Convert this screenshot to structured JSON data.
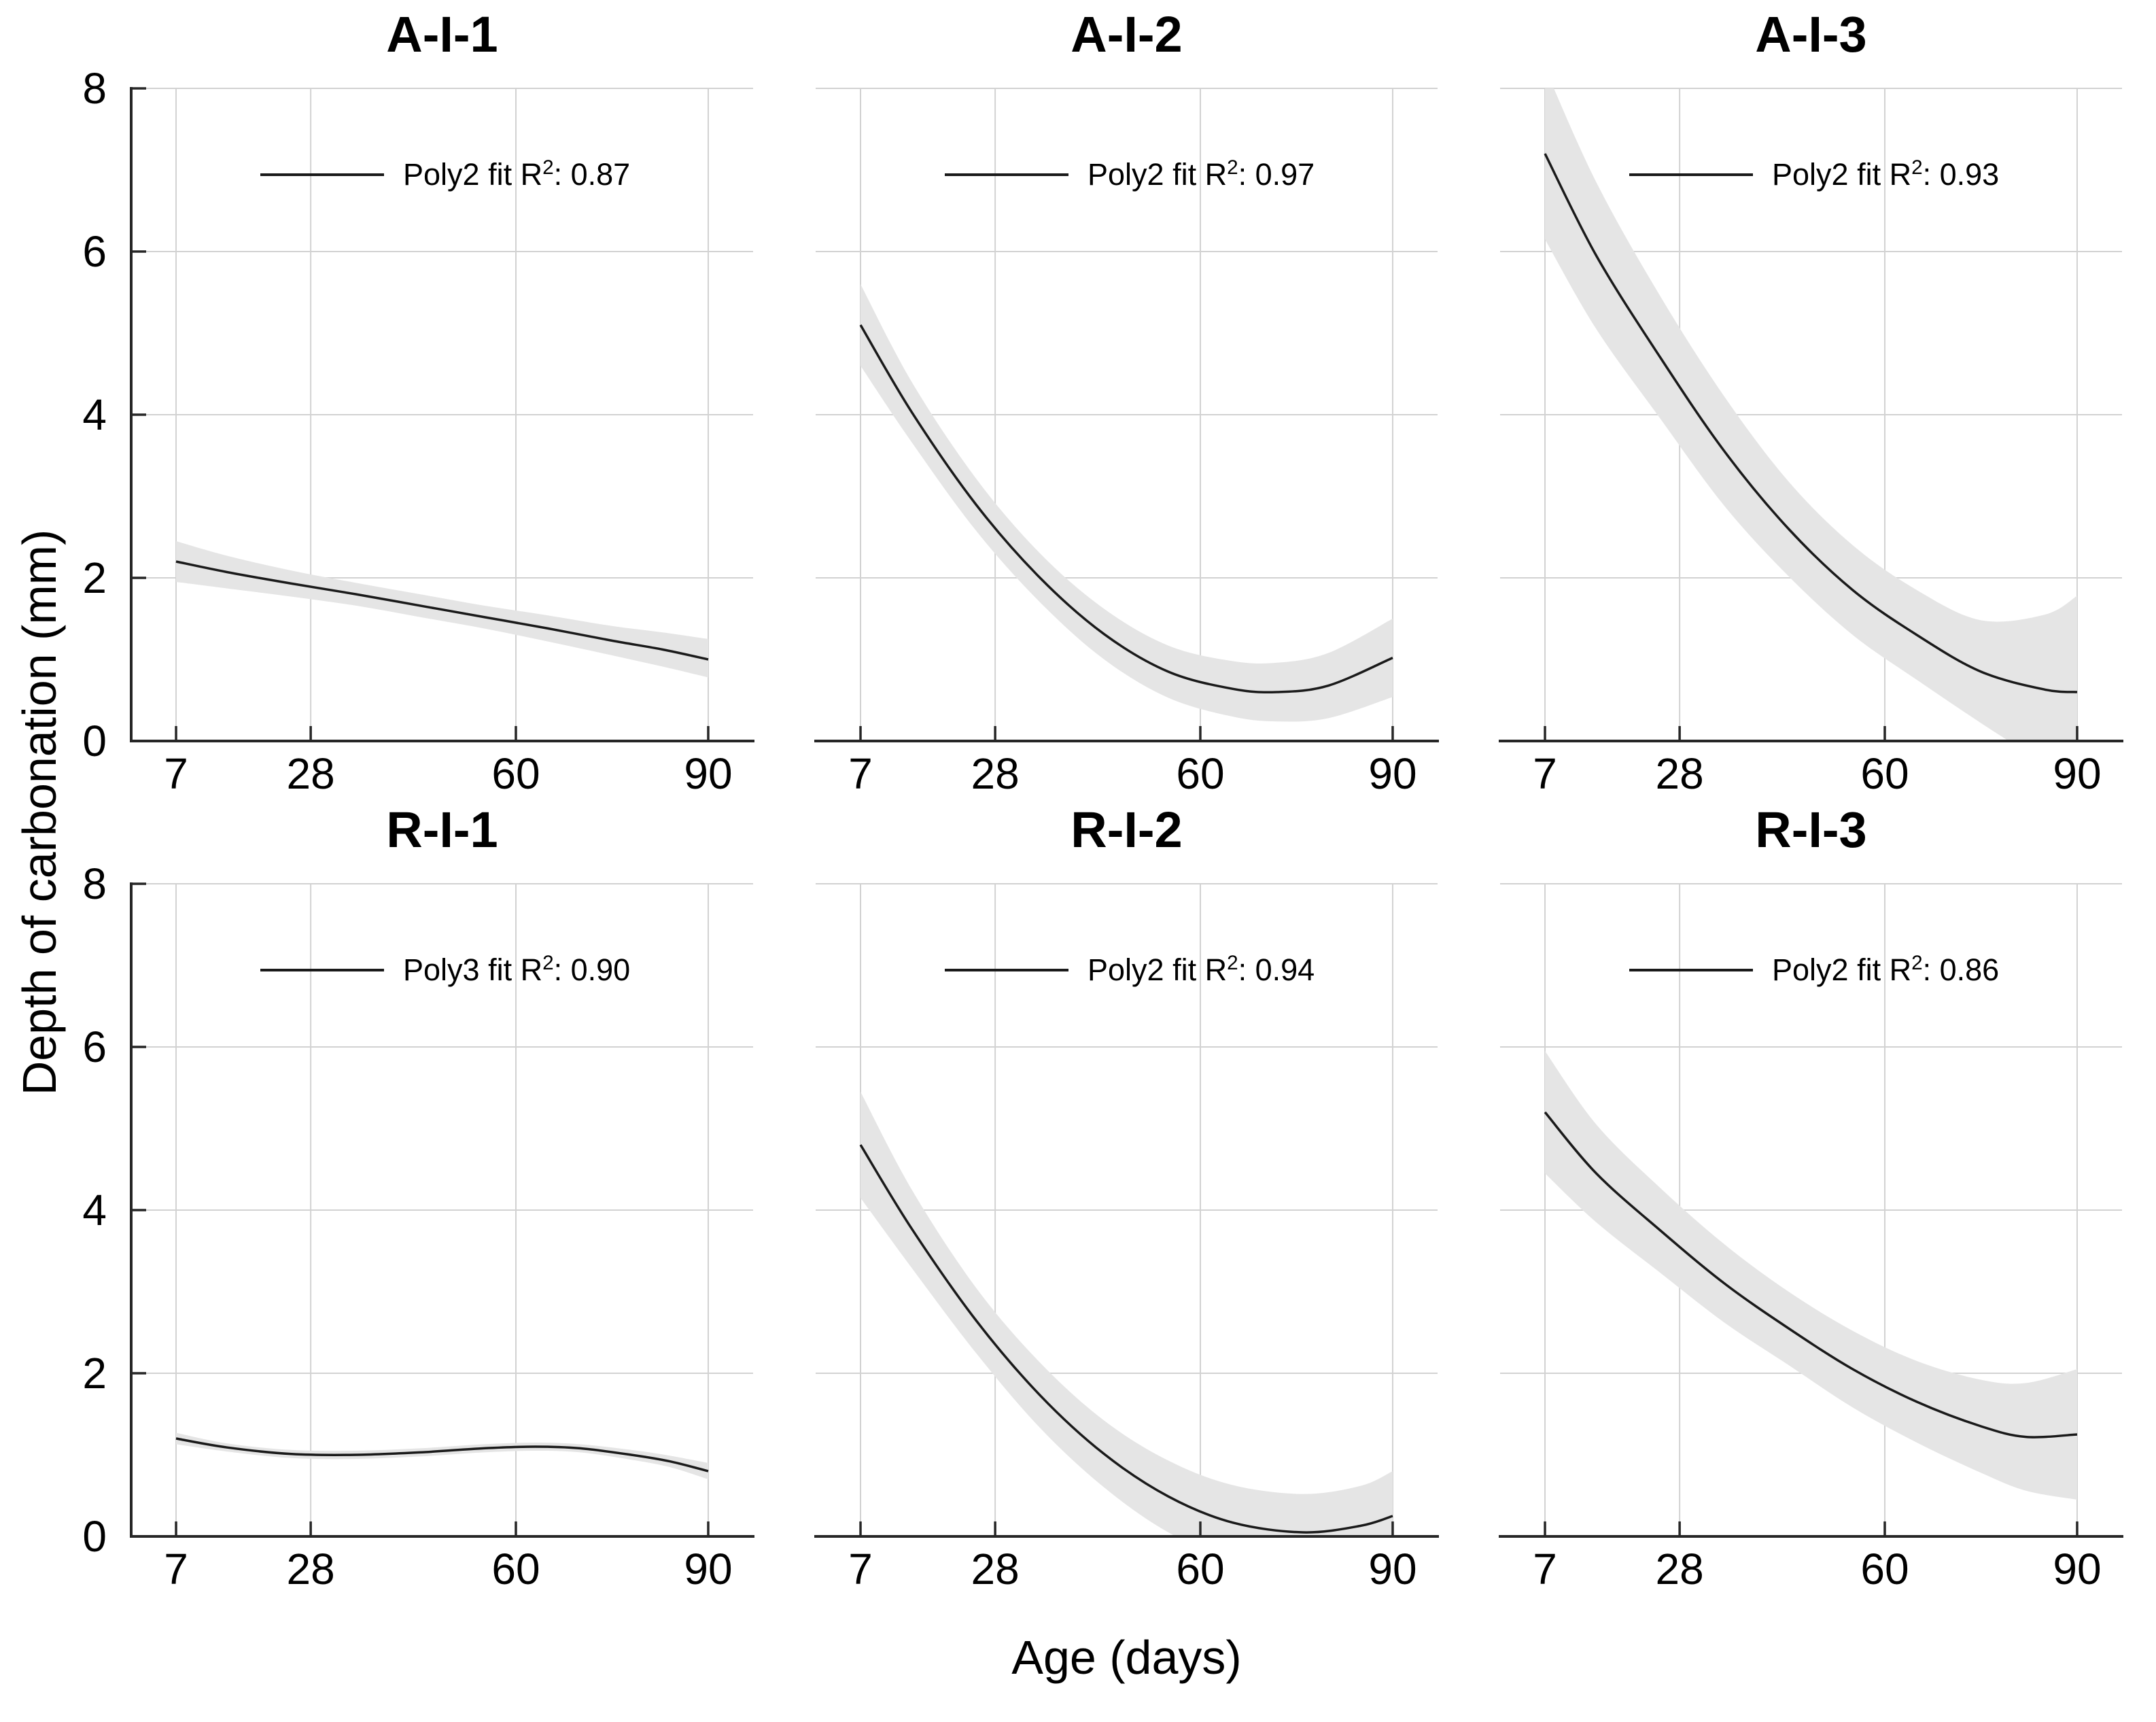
{
  "figure": {
    "xlabel": "Age (days)",
    "ylabel": "Depth of carbonation (mm)"
  },
  "axes": {
    "x_ticks": [
      {
        "label": "7",
        "value": 7
      },
      {
        "label": "28",
        "value": 28
      },
      {
        "label": "60",
        "value": 60
      },
      {
        "label": "90",
        "value": 90
      }
    ],
    "y_ticks": [
      {
        "label": "0",
        "value": 0
      },
      {
        "label": "2",
        "value": 2
      },
      {
        "label": "4",
        "value": 4
      },
      {
        "label": "6",
        "value": 6
      },
      {
        "label": "8",
        "value": 8
      }
    ],
    "x_range": [
      0,
      97
    ],
    "y_range": [
      0,
      8
    ],
    "grid": true
  },
  "colors": {
    "background": "#ffffff",
    "axis": "#262626",
    "grid": "#d2d2d2",
    "line": "#1a1a1a",
    "band": "#e5e5e5",
    "text": "#000000"
  },
  "chart_data": [
    {
      "type": "line",
      "title": "A-I-1",
      "fit": "Poly2",
      "r_squared": 0.87,
      "legend": {
        "prefix": "Poly2 fit R",
        "sup": "2",
        "suffix": ": 0.87"
      },
      "x": [
        7,
        15,
        25,
        35,
        45,
        55,
        65,
        75,
        83,
        90
      ],
      "y": [
        2.2,
        2.07,
        1.93,
        1.8,
        1.66,
        1.52,
        1.38,
        1.23,
        1.12,
        1.0
      ],
      "hi": [
        2.45,
        2.27,
        2.09,
        1.94,
        1.8,
        1.66,
        1.54,
        1.41,
        1.33,
        1.25
      ],
      "lo": [
        1.95,
        1.87,
        1.77,
        1.66,
        1.52,
        1.38,
        1.22,
        1.05,
        0.91,
        0.78
      ]
    },
    {
      "type": "line",
      "title": "A-I-2",
      "fit": "Poly2",
      "r_squared": 0.97,
      "legend": {
        "prefix": "Poly2 fit R",
        "sup": "2",
        "suffix": ": 0.97"
      },
      "x": [
        7,
        15,
        25,
        35,
        45,
        55,
        65,
        72,
        80,
        90
      ],
      "y": [
        5.1,
        4.03,
        2.9,
        2.0,
        1.31,
        0.85,
        0.64,
        0.6,
        0.68,
        1.02
      ],
      "hi": [
        5.6,
        4.4,
        3.22,
        2.3,
        1.62,
        1.17,
        0.98,
        0.96,
        1.08,
        1.5
      ],
      "lo": [
        4.6,
        3.66,
        2.58,
        1.7,
        1.0,
        0.53,
        0.3,
        0.24,
        0.28,
        0.54
      ]
    },
    {
      "type": "line",
      "title": "A-I-3",
      "fit": "Poly2",
      "r_squared": 0.93,
      "legend": {
        "prefix": "Poly2 fit R",
        "sup": "2",
        "suffix": ": 0.93"
      },
      "x": [
        7,
        15,
        25,
        35,
        45,
        55,
        65,
        75,
        85,
        90
      ],
      "y": [
        7.2,
        5.95,
        4.7,
        3.55,
        2.6,
        1.85,
        1.3,
        0.85,
        0.63,
        0.6
      ],
      "hi": [
        8.25,
        6.85,
        5.45,
        4.22,
        3.18,
        2.4,
        1.85,
        1.48,
        1.55,
        1.78
      ],
      "lo": [
        6.15,
        5.05,
        3.95,
        2.88,
        2.02,
        1.3,
        0.75,
        0.22,
        -0.29,
        -0.58
      ]
    },
    {
      "type": "line",
      "title": "R-I-1",
      "fit": "Poly3",
      "r_squared": 0.9,
      "legend": {
        "prefix": "Poly3 fit R",
        "sup": "2",
        "suffix": ": 0.90"
      },
      "x": [
        7,
        15,
        25,
        35,
        45,
        55,
        63,
        70,
        78,
        84,
        90
      ],
      "y": [
        1.2,
        1.09,
        1.01,
        1.0,
        1.03,
        1.08,
        1.1,
        1.08,
        1.0,
        0.92,
        0.8
      ],
      "hi": [
        1.27,
        1.14,
        1.06,
        1.05,
        1.08,
        1.13,
        1.15,
        1.13,
        1.06,
        0.99,
        0.9
      ],
      "lo": [
        1.13,
        1.04,
        0.96,
        0.95,
        0.98,
        1.03,
        1.05,
        1.03,
        0.94,
        0.85,
        0.7
      ]
    },
    {
      "type": "line",
      "title": "R-I-2",
      "fit": "Poly2",
      "r_squared": 0.94,
      "legend": {
        "prefix": "Poly2 fit R",
        "sup": "2",
        "suffix": ": 0.94"
      },
      "x": [
        7,
        15,
        25,
        35,
        45,
        55,
        65,
        76,
        85,
        90
      ],
      "y": [
        4.8,
        3.77,
        2.65,
        1.73,
        1.01,
        0.49,
        0.17,
        0.05,
        0.13,
        0.25
      ],
      "hi": [
        5.45,
        4.25,
        3.05,
        2.13,
        1.42,
        0.93,
        0.63,
        0.52,
        0.62,
        0.8
      ],
      "lo": [
        4.15,
        3.29,
        2.25,
        1.33,
        0.6,
        0.05,
        -0.29,
        -0.42,
        -0.36,
        -0.3
      ]
    },
    {
      "type": "line",
      "title": "R-I-3",
      "fit": "Poly2",
      "r_squared": 0.86,
      "legend": {
        "prefix": "Poly2 fit R",
        "sup": "2",
        "suffix": ": 0.86"
      },
      "x": [
        7,
        15,
        25,
        35,
        45,
        55,
        65,
        75,
        82,
        90
      ],
      "y": [
        5.2,
        4.45,
        3.75,
        3.1,
        2.55,
        2.05,
        1.65,
        1.35,
        1.22,
        1.25
      ],
      "hi": [
        5.95,
        5.05,
        4.27,
        3.58,
        3.0,
        2.52,
        2.15,
        1.92,
        1.88,
        2.05
      ],
      "lo": [
        4.45,
        3.85,
        3.23,
        2.62,
        2.1,
        1.58,
        1.15,
        0.78,
        0.56,
        0.45
      ]
    }
  ]
}
